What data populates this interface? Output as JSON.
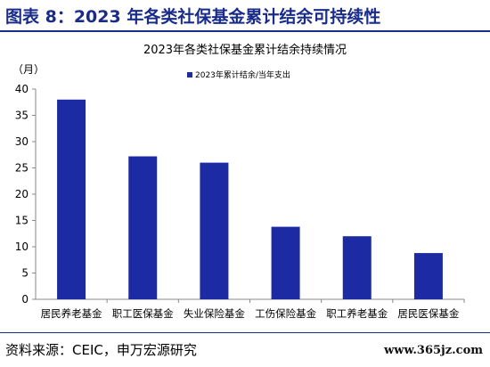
{
  "figure": {
    "title": "图表 8：2023 年各类社保基金累计结余可持续性",
    "source": "资料来源：CEIC，申万宏源研究",
    "watermark": "www.365jz.com"
  },
  "colors": {
    "accent": "#1a2c8a",
    "bar": "#1c2ba3"
  },
  "chart_data": {
    "type": "bar",
    "title": "2023年各类社保基金累计结余持续情况",
    "ylabel": "（月）",
    "xlabel": "",
    "ylim": [
      0,
      40
    ],
    "yticks": [
      0,
      5,
      10,
      15,
      20,
      25,
      30,
      35,
      40
    ],
    "legend": {
      "position": "top-left",
      "label": "2023年累计结余/当年支出"
    },
    "categories": [
      "居民养老基金",
      "职工医保基金",
      "失业保险基金",
      "工伤保险基金",
      "职工养老基金",
      "居民医保基金"
    ],
    "series": [
      {
        "name": "2023年累计结余/当年支出",
        "values": [
          38.0,
          27.2,
          26.0,
          13.8,
          12.0,
          8.8
        ]
      }
    ]
  }
}
